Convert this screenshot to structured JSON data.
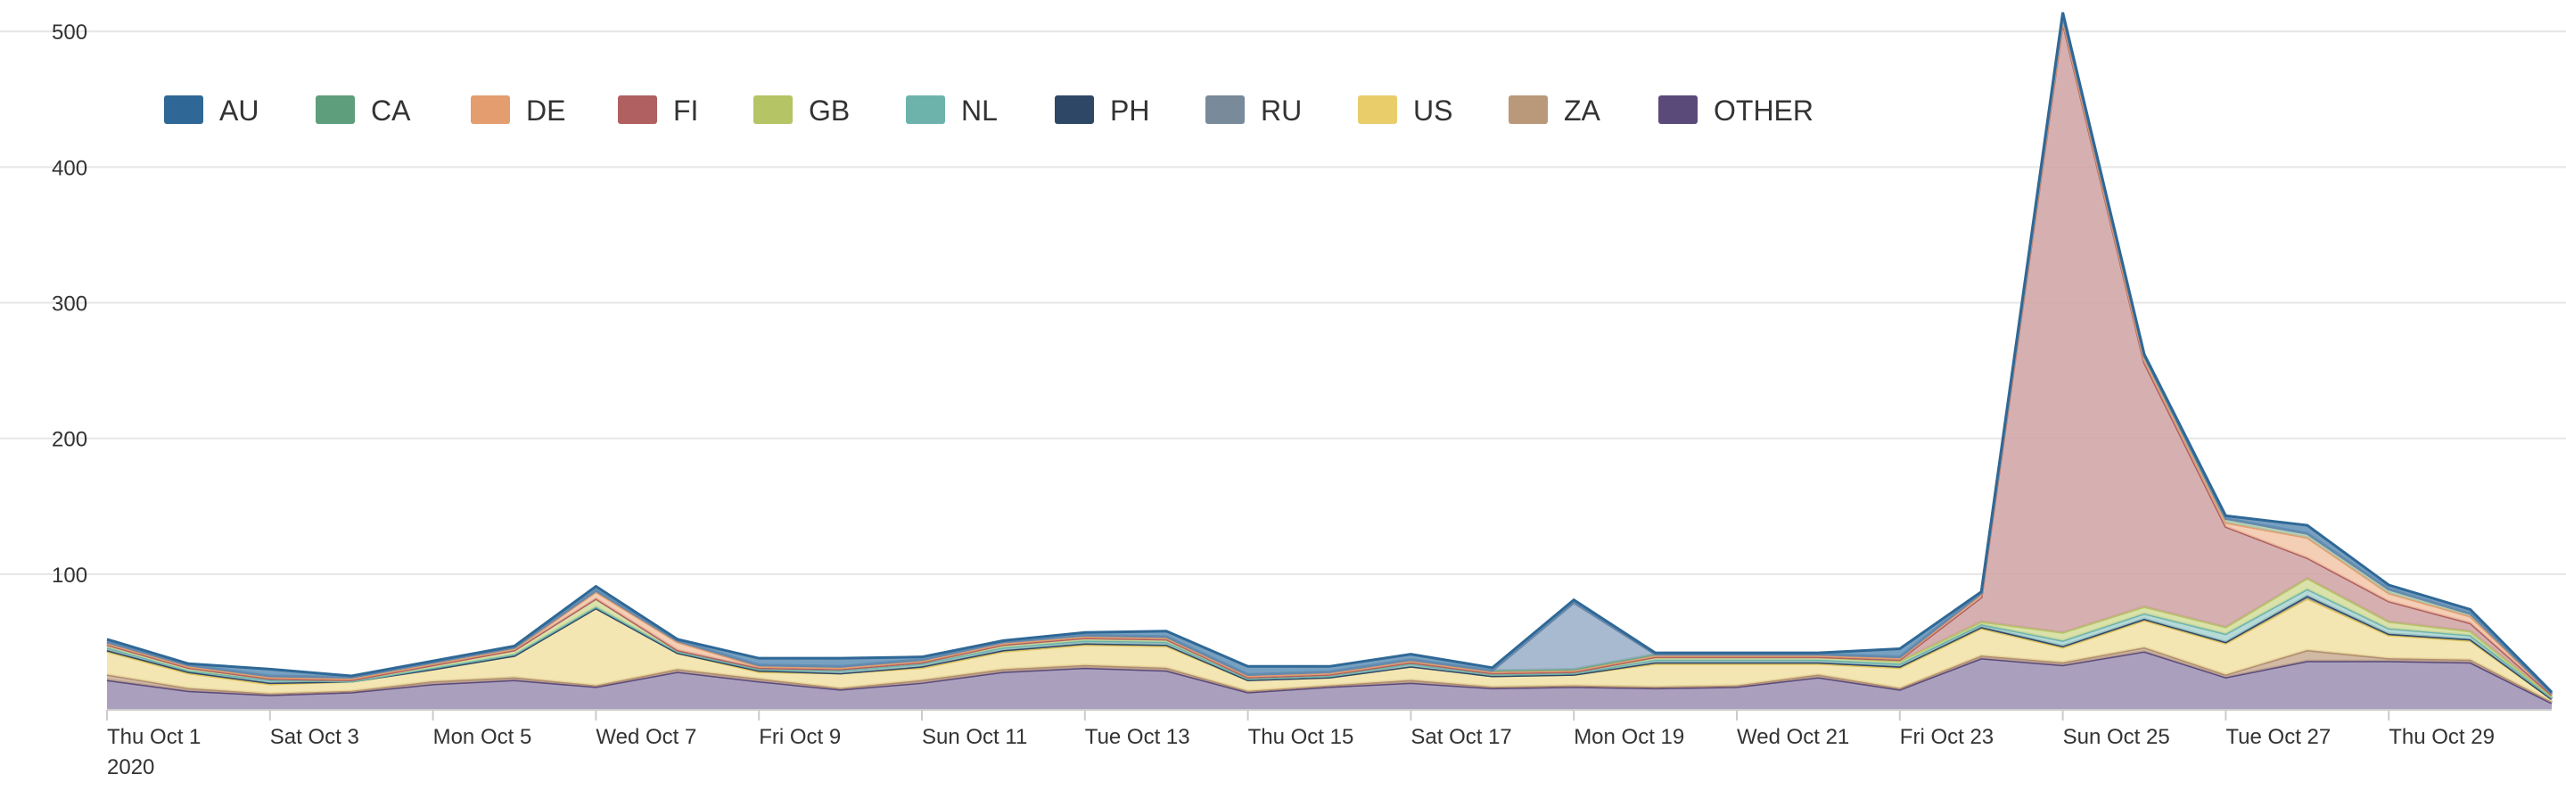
{
  "chart_data": {
    "type": "area",
    "stacked": true,
    "x": [
      "Thu Oct 1",
      "Fri Oct 2",
      "Sat Oct 3",
      "Sun Oct 4",
      "Mon Oct 5",
      "Tue Oct 6",
      "Wed Oct 7",
      "Thu Oct 8",
      "Fri Oct 9",
      "Sat Oct 10",
      "Sun Oct 11",
      "Mon Oct 12",
      "Tue Oct 13",
      "Wed Oct 14",
      "Thu Oct 15",
      "Fri Oct 16",
      "Sat Oct 17",
      "Sun Oct 18",
      "Mon Oct 19",
      "Tue Oct 20",
      "Wed Oct 21",
      "Thu Oct 22",
      "Fri Oct 23",
      "Sat Oct 24",
      "Sun Oct 25",
      "Mon Oct 26",
      "Tue Oct 27",
      "Wed Oct 28",
      "Thu Oct 29",
      "Fri Oct 30",
      "Sat Oct 31"
    ],
    "x_tick_labels": [
      "Thu Oct 1",
      "Sat Oct 3",
      "Mon Oct 5",
      "Wed Oct 7",
      "Fri Oct 9",
      "Sun Oct 11",
      "Tue Oct 13",
      "Thu Oct 15",
      "Sat Oct 17",
      "Mon Oct 19",
      "Wed Oct 21",
      "Fri Oct 23",
      "Sun Oct 25",
      "Tue Oct 27",
      "Thu Oct 29"
    ],
    "x_year_label": "2020",
    "y_ticks": [
      100,
      200,
      300,
      400,
      500
    ],
    "ylim": [
      0,
      510
    ],
    "grid": true,
    "legend_position": "top-left",
    "title": "",
    "xlabel": "",
    "ylabel": "",
    "series": [
      {
        "name": "OTHER",
        "color": "#9b8fb3",
        "stroke": "#5a4a7a",
        "values": [
          22,
          14,
          11,
          13,
          19,
          22,
          17,
          28,
          21,
          15,
          20,
          28,
          31,
          29,
          13,
          17,
          20,
          16,
          17,
          16,
          17,
          24,
          15,
          38,
          33,
          43,
          24,
          36,
          36,
          35,
          5
        ]
      },
      {
        "name": "ZA",
        "color": "#c9ad93",
        "stroke": "#b08d70",
        "values": [
          4,
          2,
          1,
          1,
          2,
          2,
          1,
          2,
          2,
          1,
          2,
          2,
          2,
          2,
          1,
          1,
          2,
          1,
          1,
          1,
          1,
          2,
          1,
          2,
          2,
          3,
          2,
          8,
          2,
          2,
          1
        ]
      },
      {
        "name": "US",
        "color": "#f1e2a4",
        "stroke": "#e0c460",
        "values": [
          17,
          11,
          7,
          7,
          9,
          16,
          57,
          12,
          5,
          11,
          9,
          13,
          15,
          16,
          8,
          6,
          10,
          8,
          8,
          17,
          16,
          8,
          15,
          20,
          11,
          20,
          23,
          38,
          17,
          14,
          2
        ]
      },
      {
        "name": "PH",
        "color": "#7d8aa2",
        "stroke": "#2f4766",
        "values": [
          1,
          1,
          1,
          0,
          0,
          0,
          0,
          0,
          1,
          0,
          1,
          1,
          1,
          1,
          0,
          0,
          0,
          0,
          0,
          1,
          1,
          1,
          1,
          1,
          1,
          1,
          1,
          2,
          1,
          1,
          0
        ]
      },
      {
        "name": "NL",
        "color": "#a9d4d0",
        "stroke": "#6db3ac",
        "values": [
          2,
          1,
          2,
          0,
          1,
          1,
          1,
          1,
          1,
          2,
          2,
          2,
          2,
          2,
          1,
          1,
          2,
          1,
          1,
          2,
          2,
          2,
          2,
          2,
          4,
          4,
          6,
          5,
          4,
          3,
          1
        ]
      },
      {
        "name": "GB",
        "color": "#d4dd9b",
        "stroke": "#b5c464",
        "values": [
          2,
          2,
          1,
          1,
          2,
          3,
          6,
          1,
          1,
          1,
          1,
          2,
          2,
          2,
          1,
          1,
          1,
          1,
          1,
          2,
          2,
          2,
          2,
          2,
          6,
          5,
          5,
          8,
          5,
          3,
          1
        ]
      },
      {
        "name": "FI",
        "color": "#cfa2a2",
        "stroke": "#b06060",
        "values": [
          0,
          0,
          0,
          0,
          0,
          0,
          0,
          0,
          0,
          0,
          0,
          0,
          0,
          0,
          0,
          0,
          0,
          0,
          0,
          0,
          0,
          0,
          1,
          18,
          450,
          180,
          74,
          15,
          15,
          6,
          1
        ]
      },
      {
        "name": "DE",
        "color": "#f2c6a8",
        "stroke": "#e39d6e",
        "values": [
          1,
          1,
          1,
          1,
          1,
          1,
          5,
          6,
          1,
          1,
          1,
          1,
          1,
          1,
          1,
          1,
          1,
          1,
          1,
          1,
          1,
          1,
          1,
          2,
          2,
          2,
          3,
          15,
          6,
          5,
          1
        ]
      },
      {
        "name": "CA",
        "color": "#a8cbb2",
        "stroke": "#6fa683",
        "values": [
          1,
          1,
          1,
          1,
          1,
          1,
          1,
          1,
          1,
          1,
          1,
          1,
          1,
          1,
          1,
          1,
          1,
          1,
          1,
          1,
          1,
          1,
          1,
          1,
          3,
          3,
          3,
          3,
          3,
          2,
          0
        ]
      },
      {
        "name": "RU",
        "color": "#98aec7",
        "stroke": "#6a86a8",
        "values": [
          0,
          0,
          0,
          0,
          0,
          0,
          0,
          0,
          0,
          0,
          0,
          0,
          0,
          0,
          0,
          0,
          0,
          0,
          49,
          0,
          0,
          0,
          0,
          0,
          0,
          0,
          0,
          0,
          0,
          0,
          0
        ]
      },
      {
        "name": "AU",
        "color": "#5f8fb6",
        "stroke": "#2f6896",
        "values": [
          2,
          1,
          5,
          1,
          1,
          1,
          3,
          1,
          5,
          6,
          2,
          1,
          2,
          4,
          6,
          4,
          4,
          2,
          2,
          1,
          1,
          1,
          6,
          1,
          2,
          1,
          2,
          6,
          3,
          3,
          1
        ]
      }
    ],
    "legend_order": [
      "AU",
      "CA",
      "DE",
      "FI",
      "GB",
      "NL",
      "PH",
      "RU",
      "US",
      "ZA",
      "OTHER"
    ],
    "legend_swatch_colors": {
      "AU": "#2f6896",
      "CA": "#5f9e7c",
      "DE": "#e39d6e",
      "FI": "#b06060",
      "GB": "#b5c464",
      "NL": "#6db3ac",
      "PH": "#2f4766",
      "RU": "#798a9a",
      "US": "#e8cd6a",
      "ZA": "#b9997a",
      "OTHER": "#5a4a7a"
    }
  }
}
